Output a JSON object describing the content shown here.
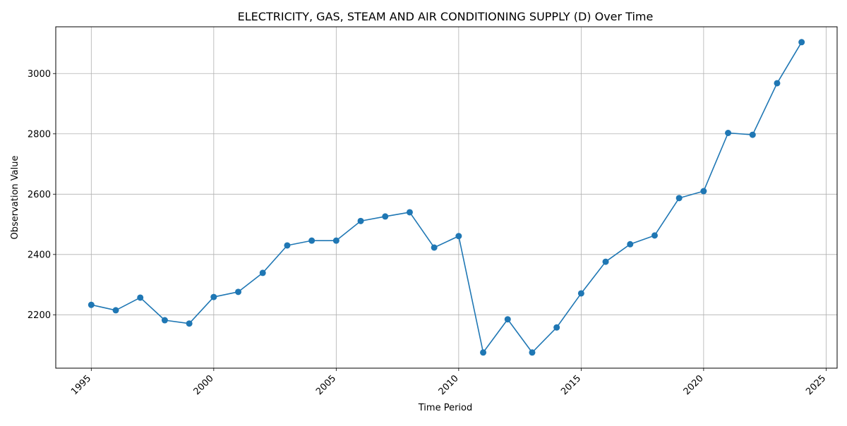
{
  "chart_data": {
    "type": "line",
    "title": "ELECTRICITY, GAS, STEAM AND AIR CONDITIONING SUPPLY (D) Over Time",
    "xlabel": "Time Period",
    "ylabel": "Observation Value",
    "x_ticks": [
      "1995",
      "2000",
      "2005",
      "2010",
      "2015",
      "2020",
      "2025"
    ],
    "y_ticks": [
      "2200",
      "2400",
      "2600",
      "2800",
      "3000"
    ],
    "xlim": [
      1993.55,
      2025.45
    ],
    "ylim": [
      2023,
      3155
    ],
    "grid": true,
    "series": [
      {
        "color": "#1f77b4",
        "marker": "circle",
        "x": [
          1995,
          1996,
          1997,
          1998,
          1999,
          2000,
          2001,
          2002,
          2003,
          2004,
          2005,
          2006,
          2007,
          2008,
          2009,
          2010,
          2011,
          2012,
          2013,
          2014,
          2015,
          2016,
          2017,
          2018,
          2019,
          2020,
          2021,
          2022,
          2023,
          2024
        ],
        "y": [
          2233,
          2215,
          2257,
          2182,
          2171,
          2259,
          2276,
          2339,
          2430,
          2446,
          2446,
          2511,
          2526,
          2540,
          2423,
          2461,
          2075,
          2185,
          2075,
          2158,
          2271,
          2376,
          2434,
          2463,
          2587,
          2610,
          2803,
          2797,
          2968,
          3104
        ]
      }
    ]
  }
}
